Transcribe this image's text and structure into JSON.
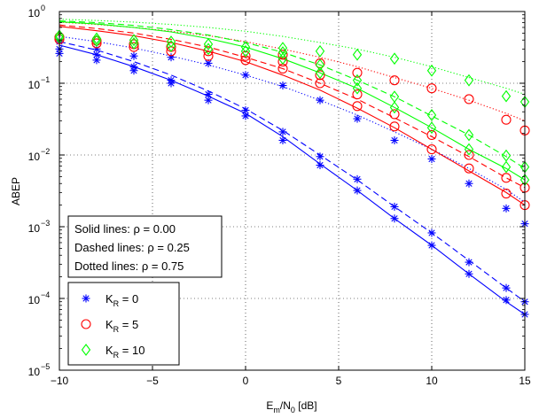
{
  "chart_data": {
    "type": "line",
    "xlabel": "E_m/N_0 [dB]",
    "ylabel": "ABEP",
    "xlim": [
      -10,
      15
    ],
    "ylim": [
      1e-05,
      1
    ],
    "yscale": "log",
    "grid": true,
    "x_ticks": [
      -10,
      -5,
      0,
      5,
      10,
      15
    ],
    "x_tick_labels": [
      "−10",
      "−5",
      "0",
      "5",
      "10",
      "15"
    ],
    "y_ticks": [
      1e-05,
      0.0001,
      0.001,
      0.01,
      0.1,
      1
    ],
    "y_tick_labels": [
      {
        "base": "10",
        "exp": "−5"
      },
      {
        "base": "10",
        "exp": "−4"
      },
      {
        "base": "10",
        "exp": "−3"
      },
      {
        "base": "10",
        "exp": "−2"
      },
      {
        "base": "10",
        "exp": "−1"
      },
      {
        "base": "10",
        "exp": "0"
      }
    ],
    "colors": {
      "kr0": "#0000ff",
      "kr5": "#ff0000",
      "kr10": "#00ff00"
    },
    "correlation_legend": [
      "Solid lines: ρ = 0.00",
      "Dashed lines: ρ = 0.25",
      "Dotted lines: ρ = 0.75"
    ],
    "marker_legend": [
      {
        "sub": "R",
        "value": " = 0",
        "marker": "star",
        "color": "#0000ff"
      },
      {
        "sub": "R",
        "value": " = 5",
        "marker": "circle",
        "color": "#ff0000"
      },
      {
        "sub": "R",
        "value": " = 10",
        "marker": "diamond",
        "color": "#00ff00"
      }
    ],
    "x": [
      -10,
      -8,
      -6,
      -4,
      -2,
      0,
      2,
      4,
      6,
      8,
      10,
      12,
      14,
      15
    ],
    "series": [
      {
        "key": "kr0",
        "style": "solid",
        "color": "#0000ff",
        "values": [
          0.34,
          0.25,
          0.17,
          0.11,
          0.066,
          0.038,
          0.018,
          0.0075,
          0.0032,
          0.0013,
          0.00055,
          0.00022,
          9e-05,
          6e-05
        ]
      },
      {
        "key": "kr0",
        "style": "dashed",
        "color": "#0000ff",
        "values": [
          0.38,
          0.29,
          0.2,
          0.13,
          0.078,
          0.044,
          0.022,
          0.01,
          0.0045,
          0.0019,
          0.00082,
          0.00034,
          0.00014,
          9e-05
        ]
      },
      {
        "key": "kr0",
        "style": "dotted",
        "color": "#0000ff",
        "values": [
          0.45,
          0.38,
          0.31,
          0.24,
          0.18,
          0.13,
          0.09,
          0.058,
          0.036,
          0.021,
          0.012,
          0.0065,
          0.0033,
          0.0022
        ]
      },
      {
        "key": "kr5",
        "style": "solid",
        "color": "#ff0000",
        "values": [
          0.62,
          0.54,
          0.46,
          0.37,
          0.28,
          0.2,
          0.13,
          0.08,
          0.045,
          0.024,
          0.012,
          0.006,
          0.003,
          0.002
        ]
      },
      {
        "key": "kr5",
        "style": "dashed",
        "color": "#ff0000",
        "values": [
          0.65,
          0.58,
          0.5,
          0.41,
          0.32,
          0.23,
          0.16,
          0.1,
          0.06,
          0.033,
          0.018,
          0.0095,
          0.0048,
          0.0035
        ]
      },
      {
        "key": "kr5",
        "style": "dotted",
        "color": "#ff0000",
        "values": [
          0.71,
          0.66,
          0.6,
          0.53,
          0.46,
          0.38,
          0.3,
          0.23,
          0.17,
          0.12,
          0.085,
          0.058,
          0.038,
          0.03
        ]
      },
      {
        "key": "kr10",
        "style": "solid",
        "color": "#00ff00",
        "values": [
          0.72,
          0.67,
          0.6,
          0.52,
          0.42,
          0.32,
          0.22,
          0.14,
          0.085,
          0.046,
          0.024,
          0.012,
          0.0065,
          0.0045
        ]
      },
      {
        "key": "kr10",
        "style": "dashed",
        "color": "#00ff00",
        "values": [
          0.74,
          0.7,
          0.64,
          0.56,
          0.47,
          0.37,
          0.27,
          0.18,
          0.11,
          0.065,
          0.035,
          0.019,
          0.0095,
          0.0065
        ]
      },
      {
        "key": "kr10",
        "style": "dotted",
        "color": "#00ff00",
        "values": [
          0.78,
          0.75,
          0.71,
          0.66,
          0.6,
          0.53,
          0.45,
          0.37,
          0.3,
          0.23,
          0.17,
          0.12,
          0.085,
          0.07
        ]
      }
    ],
    "markers": [
      {
        "key": "kr0",
        "marker": "star",
        "color": "#0000ff",
        "x": -10,
        "y": [
          0.26,
          0.3,
          0.38
        ]
      },
      {
        "key": "kr0",
        "marker": "star",
        "color": "#0000ff",
        "x": -8,
        "y": [
          0.21,
          0.25,
          0.3
        ]
      },
      {
        "key": "kr0",
        "marker": "star",
        "color": "#0000ff",
        "x": -6,
        "y": [
          0.15,
          0.17,
          0.24
        ]
      },
      {
        "key": "kr0",
        "marker": "star",
        "color": "#0000ff",
        "x": -4,
        "y": [
          0.1,
          0.11,
          0.23
        ]
      },
      {
        "key": "kr0",
        "marker": "star",
        "color": "#0000ff",
        "x": -2,
        "y": [
          0.058,
          0.07,
          0.19
        ]
      },
      {
        "key": "kr0",
        "marker": "star",
        "color": "#0000ff",
        "x": 0,
        "y": [
          0.035,
          0.042,
          0.13
        ]
      },
      {
        "key": "kr0",
        "marker": "star",
        "color": "#0000ff",
        "x": 2,
        "y": [
          0.016,
          0.021,
          0.093
        ]
      },
      {
        "key": "kr0",
        "marker": "star",
        "color": "#0000ff",
        "x": 4,
        "y": [
          0.0072,
          0.0095,
          0.058
        ]
      },
      {
        "key": "kr0",
        "marker": "star",
        "color": "#0000ff",
        "x": 6,
        "y": [
          0.0032,
          0.0046,
          0.032
        ]
      },
      {
        "key": "kr0",
        "marker": "star",
        "color": "#0000ff",
        "x": 8,
        "y": [
          0.0013,
          0.0019,
          0.016
        ]
      },
      {
        "key": "kr0",
        "marker": "star",
        "color": "#0000ff",
        "x": 10,
        "y": [
          0.00055,
          0.00082,
          0.0088
        ]
      },
      {
        "key": "kr0",
        "marker": "star",
        "color": "#0000ff",
        "x": 12,
        "y": [
          0.00022,
          0.00032,
          0.004
        ]
      },
      {
        "key": "kr0",
        "marker": "star",
        "color": "#0000ff",
        "x": 14,
        "y": [
          9.5e-05,
          0.00014,
          0.0018
        ]
      },
      {
        "key": "kr0",
        "marker": "star",
        "color": "#0000ff",
        "x": 15,
        "y": [
          6e-05,
          9e-05,
          0.0011
        ]
      },
      {
        "key": "kr5",
        "marker": "circle",
        "color": "#ff0000",
        "x": -10,
        "y": [
          0.41,
          0.44
        ]
      },
      {
        "key": "kr5",
        "marker": "circle",
        "color": "#ff0000",
        "x": -8,
        "y": [
          0.36,
          0.39
        ]
      },
      {
        "key": "kr5",
        "marker": "circle",
        "color": "#ff0000",
        "x": -6,
        "y": [
          0.32,
          0.35
        ]
      },
      {
        "key": "kr5",
        "marker": "circle",
        "color": "#ff0000",
        "x": -4,
        "y": [
          0.28,
          0.32
        ]
      },
      {
        "key": "kr5",
        "marker": "circle",
        "color": "#ff0000",
        "x": -2,
        "y": [
          0.24,
          0.28
        ]
      },
      {
        "key": "kr5",
        "marker": "circle",
        "color": "#ff0000",
        "x": 0,
        "y": [
          0.21,
          0.24
        ]
      },
      {
        "key": "kr5",
        "marker": "circle",
        "color": "#ff0000",
        "x": 2,
        "y": [
          0.16,
          0.2,
          0.25
        ]
      },
      {
        "key": "kr5",
        "marker": "circle",
        "color": "#ff0000",
        "x": 4,
        "y": [
          0.1,
          0.13,
          0.19
        ]
      },
      {
        "key": "kr5",
        "marker": "circle",
        "color": "#ff0000",
        "x": 6,
        "y": [
          0.048,
          0.07,
          0.14
        ]
      },
      {
        "key": "kr5",
        "marker": "circle",
        "color": "#ff0000",
        "x": 8,
        "y": [
          0.025,
          0.037,
          0.11
        ]
      },
      {
        "key": "kr5",
        "marker": "circle",
        "color": "#ff0000",
        "x": 10,
        "y": [
          0.012,
          0.019,
          0.085
        ]
      },
      {
        "key": "kr5",
        "marker": "circle",
        "color": "#ff0000",
        "x": 12,
        "y": [
          0.0065,
          0.01,
          0.06
        ]
      },
      {
        "key": "kr5",
        "marker": "circle",
        "color": "#ff0000",
        "x": 14,
        "y": [
          0.0029,
          0.0048,
          0.031
        ]
      },
      {
        "key": "kr5",
        "marker": "circle",
        "color": "#ff0000",
        "x": 15,
        "y": [
          0.002,
          0.0035,
          0.022
        ]
      },
      {
        "key": "kr10",
        "marker": "diamond",
        "color": "#00ff00",
        "x": -10,
        "y": [
          0.43,
          0.46
        ]
      },
      {
        "key": "kr10",
        "marker": "diamond",
        "color": "#00ff00",
        "x": -8,
        "y": [
          0.39,
          0.42
        ]
      },
      {
        "key": "kr10",
        "marker": "diamond",
        "color": "#00ff00",
        "x": -6,
        "y": [
          0.36,
          0.4
        ]
      },
      {
        "key": "kr10",
        "marker": "diamond",
        "color": "#00ff00",
        "x": -4,
        "y": [
          0.33,
          0.38
        ]
      },
      {
        "key": "kr10",
        "marker": "diamond",
        "color": "#00ff00",
        "x": -2,
        "y": [
          0.3,
          0.35
        ]
      },
      {
        "key": "kr10",
        "marker": "diamond",
        "color": "#00ff00",
        "x": 0,
        "y": [
          0.28,
          0.32
        ]
      },
      {
        "key": "kr10",
        "marker": "diamond",
        "color": "#00ff00",
        "x": 2,
        "y": [
          0.22,
          0.27,
          0.31
        ]
      },
      {
        "key": "kr10",
        "marker": "diamond",
        "color": "#00ff00",
        "x": 4,
        "y": [
          0.14,
          0.18,
          0.28
        ]
      },
      {
        "key": "kr10",
        "marker": "diamond",
        "color": "#00ff00",
        "x": 6,
        "y": [
          0.085,
          0.11,
          0.25
        ]
      },
      {
        "key": "kr10",
        "marker": "diamond",
        "color": "#00ff00",
        "x": 8,
        "y": [
          0.046,
          0.065,
          0.22
        ]
      },
      {
        "key": "kr10",
        "marker": "diamond",
        "color": "#00ff00",
        "x": 10,
        "y": [
          0.024,
          0.036,
          0.15
        ]
      },
      {
        "key": "kr10",
        "marker": "diamond",
        "color": "#00ff00",
        "x": 12,
        "y": [
          0.012,
          0.019,
          0.11
        ]
      },
      {
        "key": "kr10",
        "marker": "diamond",
        "color": "#00ff00",
        "x": 14,
        "y": [
          0.0068,
          0.0098,
          0.066
        ]
      },
      {
        "key": "kr10",
        "marker": "diamond",
        "color": "#00ff00",
        "x": 15,
        "y": [
          0.0045,
          0.0068,
          0.055
        ]
      }
    ]
  }
}
